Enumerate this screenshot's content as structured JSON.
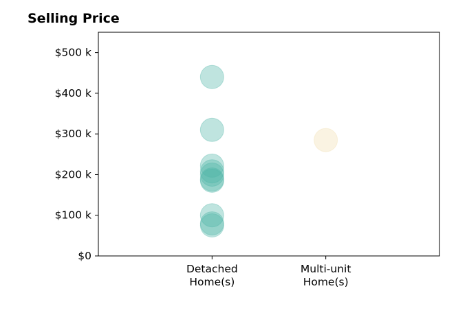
{
  "chart_data": {
    "type": "scatter",
    "title": "Selling Price",
    "xlabel": "",
    "ylabel": "",
    "categories": [
      [
        "Detached",
        "Home(s)"
      ],
      [
        "Multi-unit",
        "Home(s)"
      ]
    ],
    "y_ticks": [
      {
        "value": 0,
        "label": "$0"
      },
      {
        "value": 100,
        "label": "$100 k"
      },
      {
        "value": 200,
        "label": "$200 k"
      },
      {
        "value": 300,
        "label": "$300 k"
      },
      {
        "value": 400,
        "label": "$400 k"
      },
      {
        "value": 500,
        "label": "$500 k"
      }
    ],
    "ylim": [
      0,
      550
    ],
    "xlim": [
      -1,
      2
    ],
    "grid": false,
    "series": [
      {
        "category_index": 0,
        "color": "#4DB3A6",
        "values": [
          440,
          310,
          222,
          208,
          200,
          188,
          185,
          100,
          80,
          75
        ]
      },
      {
        "category_index": 1,
        "color": "#F2DFB0",
        "values": [
          285
        ]
      }
    ]
  }
}
